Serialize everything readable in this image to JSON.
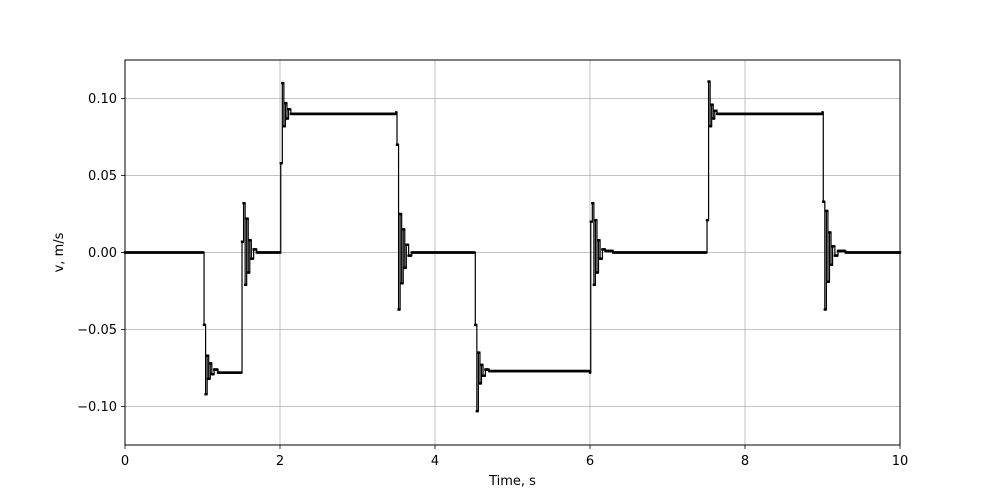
{
  "chart_data": {
    "type": "line",
    "title": "",
    "xlabel": "Time, s",
    "ylabel": "v, m/s",
    "xlim": [
      0,
      10
    ],
    "ylim": [
      -0.125,
      0.125
    ],
    "xticks": [
      0,
      2,
      4,
      6,
      8,
      10
    ],
    "xtick_labels": [
      "0",
      "2",
      "4",
      "6",
      "8",
      "10"
    ],
    "yticks": [
      -0.1,
      -0.05,
      0.0,
      0.05,
      0.1
    ],
    "ytick_labels": [
      "−0.10",
      "−0.05",
      "0.00",
      "0.05",
      "0.10"
    ],
    "grid": true,
    "line_color": "#000000",
    "marker": "square",
    "series": [
      {
        "x": [
          0,
          1.0,
          1.02,
          1.04,
          1.06,
          1.08,
          1.1,
          1.12,
          1.15,
          1.2,
          1.3,
          1.5,
          1.51,
          1.53,
          1.55,
          1.57,
          1.59,
          1.61,
          1.63,
          1.66,
          1.7,
          1.8,
          2.0,
          2.01,
          2.03,
          2.05,
          2.07,
          2.09,
          2.11,
          2.14,
          2.2,
          2.3,
          3.5,
          3.51,
          3.53,
          3.55,
          3.57,
          3.59,
          3.61,
          3.63,
          3.66,
          3.7,
          3.8,
          4.5,
          4.52,
          4.54,
          4.56,
          4.58,
          4.6,
          4.62,
          4.65,
          4.7,
          4.8,
          6.0,
          6.01,
          6.03,
          6.05,
          6.07,
          6.09,
          6.11,
          6.13,
          6.16,
          6.2,
          6.3,
          7.5,
          7.51,
          7.53,
          7.55,
          7.57,
          7.59,
          7.61,
          7.64,
          7.7,
          7.8,
          9.0,
          9.01,
          9.03,
          9.05,
          9.07,
          9.09,
          9.11,
          9.13,
          9.16,
          9.2,
          9.3,
          10.0
        ],
        "y": [
          0,
          0,
          -0.047,
          -0.092,
          -0.067,
          -0.082,
          -0.072,
          -0.079,
          -0.076,
          -0.078,
          -0.078,
          -0.078,
          0.007,
          0.032,
          -0.021,
          0.022,
          -0.013,
          0.008,
          -0.004,
          0.002,
          0,
          0,
          0,
          0.058,
          0.11,
          0.082,
          0.097,
          0.087,
          0.093,
          0.09,
          0.09,
          0.09,
          0.091,
          0.07,
          -0.037,
          0.025,
          -0.02,
          0.015,
          -0.01,
          0.005,
          -0.002,
          0,
          0,
          0,
          -0.047,
          -0.103,
          -0.065,
          -0.085,
          -0.073,
          -0.08,
          -0.076,
          -0.077,
          -0.077,
          -0.078,
          0.02,
          0.032,
          -0.021,
          0.021,
          -0.013,
          0.008,
          -0.004,
          0.002,
          0.001,
          0,
          0,
          0.021,
          0.111,
          0.082,
          0.096,
          0.087,
          0.092,
          0.09,
          0.09,
          0.09,
          0.091,
          0.033,
          -0.037,
          0.027,
          -0.019,
          0.013,
          -0.008,
          0.004,
          -0.002,
          0.001,
          0,
          0
        ]
      }
    ]
  }
}
